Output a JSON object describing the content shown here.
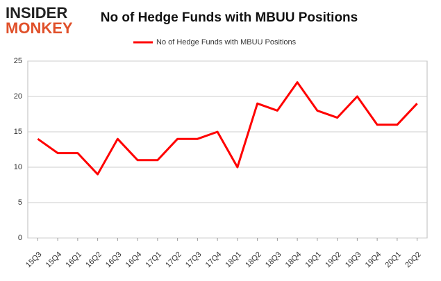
{
  "logo": {
    "line1": "INSIDER",
    "line2": "MONKEY"
  },
  "chart_data": {
    "type": "line",
    "title": "No of Hedge Funds with MBUU Positions",
    "categories": [
      "15Q3",
      "15Q4",
      "16Q1",
      "16Q2",
      "16Q3",
      "16Q4",
      "17Q1",
      "17Q2",
      "17Q3",
      "17Q4",
      "18Q1",
      "18Q2",
      "18Q3",
      "18Q4",
      "19Q1",
      "19Q2",
      "19Q3",
      "19Q4",
      "20Q1",
      "20Q2"
    ],
    "series": [
      {
        "name": "No of Hedge Funds with MBUU Positions",
        "color": "#ff0000",
        "values": [
          14,
          12,
          12,
          9,
          14,
          11,
          11,
          14,
          14,
          15,
          10,
          19,
          18,
          22,
          18,
          17,
          20,
          16,
          16,
          19
        ]
      }
    ],
    "ylim": [
      0,
      25
    ],
    "yticks": [
      0,
      5,
      10,
      15,
      20,
      25
    ],
    "grid": true,
    "legend": "top"
  }
}
